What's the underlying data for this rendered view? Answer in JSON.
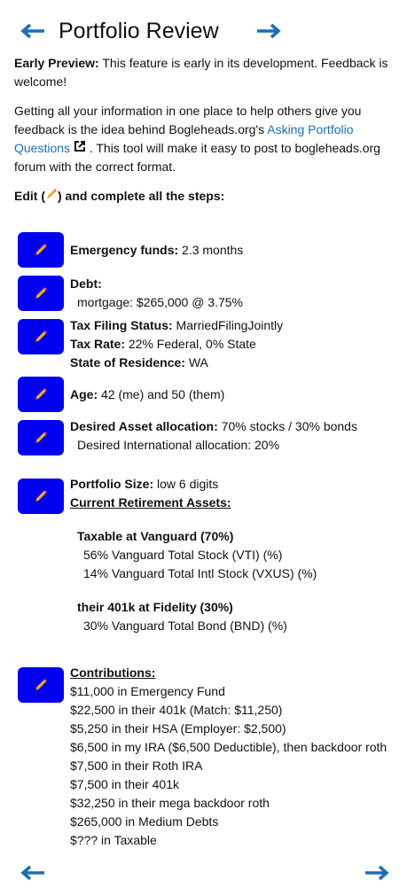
{
  "header": {
    "title": "Portfolio Review"
  },
  "intro": {
    "preview_label": "Early Preview:",
    "preview_text": "This feature is early in its development. Feedback is welcome!",
    "para_before": "Getting all your information in one place to help others give you feedback is the idea behind Bogleheads.org's",
    "link": "Asking Portfolio Questions",
    "para_after": ". This tool will make it easy to post to bogleheads.org forum with the correct format.",
    "edit_before": "Edit (",
    "edit_after": ") and complete all the steps:"
  },
  "steps": [
    {
      "lines": [
        {
          "label": "Emergency funds:",
          "value": "2.3 months"
        }
      ]
    },
    {
      "lines": [
        {
          "label": "Debt:"
        },
        {
          "value": "mortgage: $265,000 @ 3.75%"
        }
      ]
    },
    {
      "lines": [
        {
          "label": "Tax Filing Status:",
          "value": "MarriedFilingJointly"
        },
        {
          "label": "Tax Rate:",
          "value": "22% Federal, 0% State"
        },
        {
          "label": "State of Residence:",
          "value": "WA"
        }
      ]
    },
    {
      "lines": [
        {
          "label": "Age:",
          "value": "42 (me) and 50 (them)"
        }
      ]
    },
    {
      "lines": [
        {
          "label": "Desired Asset allocation:",
          "value": "70% stocks / 30% bonds"
        },
        {
          "value": "Desired International allocation: 20%"
        }
      ]
    },
    {
      "lines": [
        {
          "label": "Portfolio Size:",
          "value": "low 6 digits"
        }
      ],
      "heading": "Current Retirement Assets:",
      "accounts": [
        {
          "name": "Taxable at Vanguard (70%)",
          "holdings": [
            "56% Vanguard Total Stock (VTI) (%)",
            "14% Vanguard Total Intl Stock (VXUS) (%)"
          ]
        },
        {
          "name": "their 401k at Fidelity (30%)",
          "holdings": [
            "30% Vanguard Total Bond (BND) (%)"
          ]
        }
      ]
    },
    {
      "heading": "Contributions:",
      "items": [
        "$11,000 in Emergency Fund",
        "$22,500 in their 401k (Match: $11,250)",
        "$5,250 in their HSA (Employer: $2,500)",
        "$6,500 in my IRA ($6,500 Deductible), then backdoor roth",
        "$7,500 in their Roth IRA",
        "$7,500 in their 401k",
        "$32,250 in their mega backdoor roth",
        "$265,000 in Medium Debts",
        "$??? in Taxable"
      ]
    }
  ]
}
